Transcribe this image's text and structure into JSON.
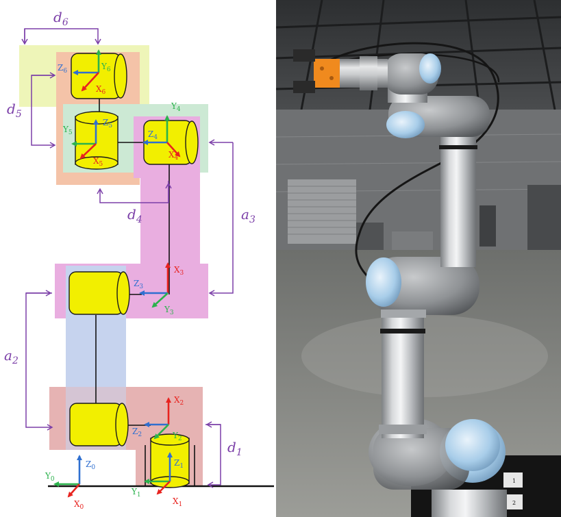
{
  "diagram": {
    "dimensions": {
      "d6": {
        "sym": "d",
        "sub": "6"
      },
      "d5": {
        "sym": "d",
        "sub": "5"
      },
      "d4": {
        "sym": "d",
        "sub": "4"
      },
      "a3": {
        "sym": "a",
        "sub": "3"
      },
      "a2": {
        "sym": "a",
        "sub": "2"
      },
      "d1": {
        "sym": "d",
        "sub": "1"
      }
    },
    "frames": {
      "f0": {
        "x": {
          "sym": "X",
          "sub": "0"
        },
        "y": {
          "sym": "Y",
          "sub": "0"
        },
        "z": {
          "sym": "Z",
          "sub": "0"
        }
      },
      "f1": {
        "x": {
          "sym": "X",
          "sub": "1"
        },
        "y": {
          "sym": "Y",
          "sub": "1"
        },
        "z": {
          "sym": "Z",
          "sub": "1"
        }
      },
      "f2": {
        "x": {
          "sym": "X",
          "sub": "2"
        },
        "y": {
          "sym": "Y",
          "sub": "2"
        },
        "z": {
          "sym": "Z",
          "sub": "2"
        }
      },
      "f3": {
        "x": {
          "sym": "X",
          "sub": "3"
        },
        "y": {
          "sym": "Y",
          "sub": "3"
        },
        "z": {
          "sym": "Z",
          "sub": "3"
        }
      },
      "f4": {
        "x": {
          "sym": "X",
          "sub": "4"
        },
        "y": {
          "sym": "Y",
          "sub": "4"
        },
        "z": {
          "sym": "Z",
          "sub": "4"
        }
      },
      "f5": {
        "x": {
          "sym": "X",
          "sub": "5"
        },
        "y": {
          "sym": "Y",
          "sub": "5"
        },
        "z": {
          "sym": "Z",
          "sub": "5"
        }
      },
      "f6": {
        "x": {
          "sym": "X",
          "sub": "6"
        },
        "y": {
          "sym": "Y",
          "sub": "6"
        },
        "z": {
          "sym": "Z",
          "sub": "6"
        }
      }
    },
    "colors": {
      "x_axis": "#e8231f",
      "y_axis": "#2bb24c",
      "z_axis": "#2f6fd0",
      "dimension": "#7b3fa8",
      "joint_fill": "#f2ef00",
      "link_pink": "#e9aee0",
      "link_blue": "#c6d3ee",
      "link_rose": "#e6b3b3",
      "link_green": "#cce9d4",
      "link_lime": "#eef5b8",
      "link_salmon": "#f4c3a8"
    }
  },
  "photo": {
    "label_marks": [
      "1",
      "2"
    ]
  }
}
